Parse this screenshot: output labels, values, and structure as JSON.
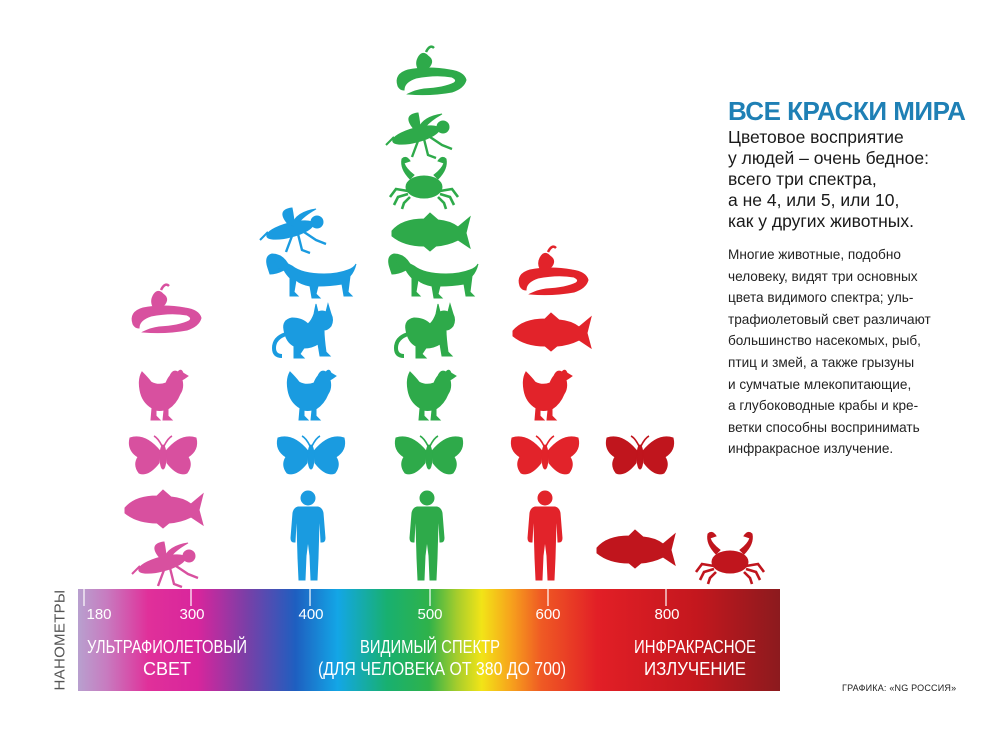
{
  "title": "ВСЕ КРАСКИ МИРА",
  "lead_lines": [
    "Цветовое восприятие",
    "у людей – очень бедное:",
    "всего три спектра,",
    "а не 4, или 5, или 10,",
    "как у других животных."
  ],
  "body_lines": [
    "Многие животные, подобно",
    "человеку, видят три основных",
    "цвета видимого спектра; уль-",
    "трафиолетовый свет различают",
    "большинство насекомых, рыб,",
    "птиц и змей, а также грызуны",
    "и сумчатые млекопитающие,",
    "а глубоководные крабы и кре-",
    "ветки способны воспринимать",
    "инфракрасное излучение."
  ],
  "credit": "ГРАФИКА: «NG РОССИЯ»",
  "axis": {
    "label": "НАНОМЕТРЫ",
    "ticks": [
      "180",
      "300",
      "400",
      "500",
      "600",
      "800"
    ]
  },
  "bands": {
    "uv": [
      "УЛЬТРАФИОЛЕТОВЫЙ",
      "СВЕТ"
    ],
    "visible": [
      "ВИДИМЫЙ СПЕКТР",
      "(ДЛЯ ЧЕЛОВЕКА ОТ 380 ДО 700)"
    ],
    "ir": [
      "ИНФРАКРАСНОЕ",
      "ИЗЛУЧЕНИЕ"
    ]
  },
  "colors": {
    "title": "#1f80b5",
    "uv_column": "#d8509f",
    "blue_column": "#1a9be0",
    "green_column": "#2eaa4a",
    "red_column": "#e2232a",
    "darkred_column": "#c0151d",
    "ir_end": "#8c1a1e"
  },
  "columns": [
    {
      "color": "uv_column",
      "animals": [
        "snake-icon",
        "chicken-icon",
        "butterfly-icon",
        "fish-icon",
        "fly-icon"
      ]
    },
    {
      "color": "blue_column",
      "animals": [
        "fly-icon",
        "dog-icon",
        "cat-icon",
        "chicken-icon",
        "butterfly-icon",
        "human-icon"
      ]
    },
    {
      "color": "green_column",
      "animals": [
        "snake-icon",
        "fly-icon",
        "crab-icon",
        "fish-icon",
        "dog-icon",
        "cat-icon",
        "chicken-icon",
        "butterfly-icon",
        "human-icon"
      ]
    },
    {
      "color": "red_column",
      "animals": [
        "snake-icon",
        "fish-icon",
        "chicken-icon",
        "butterfly-icon",
        "human-icon"
      ]
    },
    {
      "color": "darkred_column",
      "animals": [
        "butterfly-icon",
        "fish-icon"
      ]
    },
    {
      "color": "darkred_column",
      "animals": [
        "crab-icon"
      ]
    }
  ]
}
